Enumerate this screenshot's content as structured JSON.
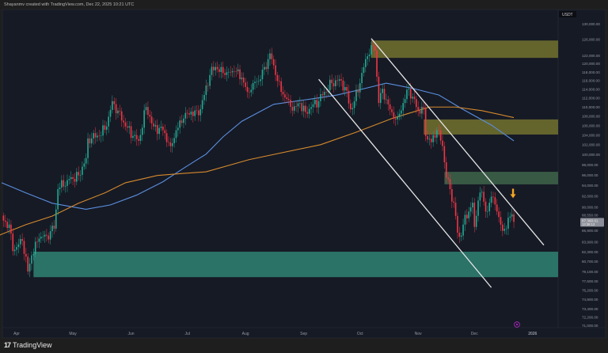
{
  "header": {
    "attribution": "Shayanmv created with TradingView.com, Dec 22, 2025 10:21 UTC"
  },
  "footer": {
    "brand": "TradingView"
  },
  "colors": {
    "background": "#161a25",
    "up": "#22ab94",
    "down": "#f23645",
    "ma_blue": "#5b8fe0",
    "ma_orange": "#d68a2c",
    "channel": "#e6e6e6",
    "arrow": "#f5a623",
    "event_icon": "#9c27b0"
  },
  "chart_data": {
    "type": "candlestick",
    "symbol_currency": "USDT",
    "y_scale": "log",
    "ylim": [
      71000,
      131000
    ],
    "grid": false,
    "price_ticks": [
      "130,000.00",
      "126,000.00",
      "122,000.00",
      "120,000.00",
      "118,000.00",
      "116,000.00",
      "114,000.00",
      "112,000.00",
      "110,000.00",
      "108,000.00",
      "106,000.00",
      "104,000.00",
      "102,000.00",
      "100,000.00",
      "98,000.00",
      "96,000.00",
      "94,000.00",
      "92,000.00",
      "90,000.00",
      "88,550.00",
      "85,900.00",
      "83,900.00",
      "82,300.00",
      "80,700.00",
      "79,100.00",
      "77,600.00",
      "76,200.00",
      "74,800.00",
      "73,400.00",
      "72,200.00",
      "71,000.00"
    ],
    "time_ticks": [
      {
        "label": "Apr",
        "date": "2025-04-01"
      },
      {
        "label": "May",
        "date": "2025-05-01"
      },
      {
        "label": "Jun",
        "date": "2025-06-01"
      },
      {
        "label": "Jul",
        "date": "2025-07-01"
      },
      {
        "label": "Aug",
        "date": "2025-08-01"
      },
      {
        "label": "Sep",
        "date": "2025-09-01"
      },
      {
        "label": "Oct",
        "date": "2025-10-01"
      },
      {
        "label": "Nov",
        "date": "2025-11-01"
      },
      {
        "label": "Dec",
        "date": "2025-12-01"
      },
      {
        "label": "2026",
        "date": "2026-01-01"
      }
    ],
    "last_price": "87,360.01",
    "countdown": "13:38:12",
    "close_samples": [
      [
        "2025-03-25",
        87600
      ],
      [
        "2025-03-28",
        86900
      ],
      [
        "2025-03-30",
        82400
      ],
      [
        "2025-04-04",
        84100
      ],
      [
        "2025-04-07",
        79100
      ],
      [
        "2025-04-09",
        81700
      ],
      [
        "2025-04-13",
        84500
      ],
      [
        "2025-04-17",
        85000
      ],
      [
        "2025-04-21",
        86200
      ],
      [
        "2025-04-23",
        93300
      ],
      [
        "2025-04-28",
        95000
      ],
      [
        "2025-05-04",
        95900
      ],
      [
        "2025-05-08",
        99300
      ],
      [
        "2025-05-09",
        103300
      ],
      [
        "2025-05-15",
        103800
      ],
      [
        "2025-05-19",
        105800
      ],
      [
        "2025-05-22",
        111300
      ],
      [
        "2025-05-25",
        109200
      ],
      [
        "2025-05-29",
        105800
      ],
      [
        "2025-06-02",
        103800
      ],
      [
        "2025-06-05",
        102800
      ],
      [
        "2025-06-09",
        110000
      ],
      [
        "2025-06-13",
        105800
      ],
      [
        "2025-06-18",
        105000
      ],
      [
        "2025-06-22",
        101700
      ],
      [
        "2025-06-25",
        105000
      ],
      [
        "2025-06-29",
        107500
      ],
      [
        "2025-07-03",
        109000
      ],
      [
        "2025-07-07",
        108200
      ],
      [
        "2025-07-10",
        112700
      ],
      [
        "2025-07-13",
        117300
      ],
      [
        "2025-07-16",
        119200
      ],
      [
        "2025-07-21",
        117300
      ],
      [
        "2025-07-26",
        118200
      ],
      [
        "2025-07-30",
        116700
      ],
      [
        "2025-08-02",
        113400
      ],
      [
        "2025-08-05",
        115400
      ],
      [
        "2025-08-09",
        116300
      ],
      [
        "2025-08-13",
        121100
      ],
      [
        "2025-08-14",
        122500
      ],
      [
        "2025-08-17",
        117300
      ],
      [
        "2025-08-20",
        113400
      ],
      [
        "2025-08-24",
        111600
      ],
      [
        "2025-08-26",
        109200
      ],
      [
        "2025-08-30",
        110900
      ],
      [
        "2025-09-02",
        108900
      ],
      [
        "2025-09-05",
        110000
      ],
      [
        "2025-09-09",
        111300
      ],
      [
        "2025-09-12",
        113400
      ],
      [
        "2025-09-16",
        115400
      ],
      [
        "2025-09-20",
        116300
      ],
      [
        "2025-09-23",
        114500
      ],
      [
        "2025-09-26",
        109500
      ],
      [
        "2025-09-28",
        111300
      ],
      [
        "2025-10-01",
        115400
      ],
      [
        "2025-10-04",
        121100
      ],
      [
        "2025-10-07",
        124500
      ],
      [
        "2025-10-09",
        123200
      ],
      [
        "2025-10-11",
        110900
      ],
      [
        "2025-10-13",
        114100
      ],
      [
        "2025-10-16",
        110600
      ],
      [
        "2025-10-19",
        107500
      ],
      [
        "2025-10-21",
        107800
      ],
      [
        "2025-10-24",
        110900
      ],
      [
        "2025-10-27",
        114100
      ],
      [
        "2025-10-29",
        112300
      ],
      [
        "2025-11-01",
        109200
      ],
      [
        "2025-11-04",
        109800
      ],
      [
        "2025-11-05",
        103800
      ],
      [
        "2025-11-08",
        102500
      ],
      [
        "2025-11-11",
        105000
      ],
      [
        "2025-11-14",
        101700
      ],
      [
        "2025-11-16",
        95500
      ],
      [
        "2025-11-18",
        93300
      ],
      [
        "2025-11-20",
        90800
      ],
      [
        "2025-11-22",
        85500
      ],
      [
        "2025-11-23",
        84800
      ],
      [
        "2025-11-25",
        86900
      ],
      [
        "2025-11-28",
        89200
      ],
      [
        "2025-11-30",
        90800
      ],
      [
        "2025-12-01",
        86500
      ],
      [
        "2025-12-03",
        91200
      ],
      [
        "2025-12-05",
        92800
      ],
      [
        "2025-12-07",
        89200
      ],
      [
        "2025-12-09",
        90800
      ],
      [
        "2025-12-11",
        91800
      ],
      [
        "2025-12-13",
        89200
      ],
      [
        "2025-12-15",
        86900
      ],
      [
        "2025-12-18",
        86200
      ],
      [
        "2025-12-19",
        88100
      ],
      [
        "2025-12-21",
        88700
      ],
      [
        "2025-12-22",
        87360.01
      ]
    ],
    "moving_averages": [
      {
        "color": "#5b8fe0",
        "points": [
          [
            "2025-03-24",
            94500
          ],
          [
            "2025-04-06",
            92600
          ],
          [
            "2025-04-20",
            90700
          ],
          [
            "2025-05-08",
            89600
          ],
          [
            "2025-05-21",
            90400
          ],
          [
            "2025-06-04",
            92200
          ],
          [
            "2025-06-18",
            94700
          ],
          [
            "2025-06-29",
            97300
          ],
          [
            "2025-07-11",
            100100
          ],
          [
            "2025-07-20",
            103600
          ],
          [
            "2025-07-30",
            106900
          ],
          [
            "2025-08-16",
            110600
          ],
          [
            "2025-09-05",
            111800
          ],
          [
            "2025-09-19",
            112700
          ],
          [
            "2025-10-02",
            114000
          ],
          [
            "2025-10-15",
            115400
          ],
          [
            "2025-10-29",
            114200
          ],
          [
            "2025-11-12",
            112700
          ],
          [
            "2025-11-24",
            109700
          ],
          [
            "2025-12-10",
            106100
          ],
          [
            "2025-12-22",
            102800
          ]
        ]
      },
      {
        "color": "#d68a2c",
        "points": [
          [
            "2025-03-23",
            85100
          ],
          [
            "2025-04-06",
            86900
          ],
          [
            "2025-04-20",
            88400
          ],
          [
            "2025-05-04",
            90700
          ],
          [
            "2025-05-18",
            92600
          ],
          [
            "2025-05-29",
            94500
          ],
          [
            "2025-06-15",
            95900
          ],
          [
            "2025-06-29",
            96300
          ],
          [
            "2025-07-11",
            96600
          ],
          [
            "2025-08-03",
            99000
          ],
          [
            "2025-09-10",
            102000
          ],
          [
            "2025-09-29",
            104600
          ],
          [
            "2025-10-18",
            107500
          ],
          [
            "2025-11-07",
            110000
          ],
          [
            "2025-11-21",
            110000
          ],
          [
            "2025-12-05",
            109200
          ],
          [
            "2025-12-22",
            107700
          ]
        ]
      }
    ],
    "zones": [
      {
        "kind": "supply",
        "color": "#6b6a2e",
        "from": "2025-10-07",
        "top": 125700,
        "bottom": 121400
      },
      {
        "kind": "supply",
        "color": "#6b6a2e",
        "from": "2025-11-04",
        "top": 107300,
        "bottom": 104100
      },
      {
        "kind": "supply",
        "color": "#3c5e46",
        "from": "2025-11-15",
        "top": 96600,
        "bottom": 94200
      },
      {
        "kind": "demand",
        "color": "#2e7a6c",
        "from": "2025-04-10",
        "top": 82300,
        "bottom": 78200
      }
    ],
    "channel_lines": [
      [
        [
          "2025-10-07",
          126200
        ],
        [
          "2026-01-07",
          83400
        ]
      ],
      [
        [
          "2025-09-09",
          116300
        ],
        [
          "2025-12-10",
          76600
        ]
      ]
    ],
    "annotations": [
      {
        "type": "arrow-down",
        "date": "2025-12-22",
        "price": 92500
      }
    ]
  }
}
